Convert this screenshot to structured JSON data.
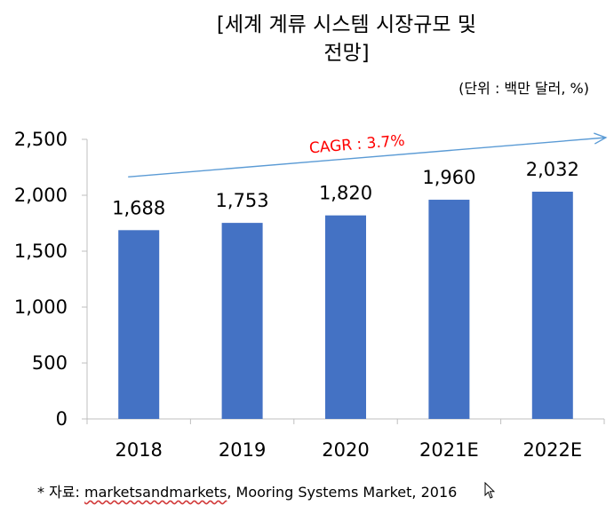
{
  "chart_data": {
    "type": "bar",
    "title_line1": "[세계 계류 시스템 시장규모 및",
    "title_line2": "전망]",
    "unit": "(단위 : 백만 달러, %)",
    "categories": [
      "2018",
      "2019",
      "2020",
      "2021E",
      "2022E"
    ],
    "values": [
      1688,
      1753,
      1820,
      1960,
      2032
    ],
    "value_labels": [
      "1,688",
      "1,753",
      "1,820",
      "1,960",
      "2,032"
    ],
    "ylim": [
      0,
      2500
    ],
    "yticks": [
      0,
      500,
      1000,
      1500,
      2000,
      2500
    ],
    "ytick_labels": [
      "0",
      "500",
      "1,000",
      "1,500",
      "2,000",
      "2,500"
    ],
    "annotation": "CAGR : 3.7%",
    "bar_color": "#4472c4",
    "arrow_color": "#5b9bd5",
    "annotation_color": "#ff0000",
    "grid": false,
    "legend": "none"
  },
  "footnote": {
    "prefix": "* 자료: ",
    "source": "marketsandmarkets",
    "rest": ", Mooring Systems Market, 2016"
  }
}
